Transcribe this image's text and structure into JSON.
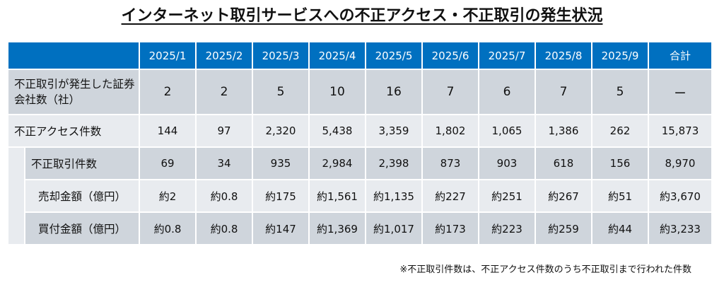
{
  "title": "インターネット取引サービスへの不正アクセス・不正取引の発生状況",
  "table": {
    "headers": [
      "2025/1",
      "2025/2",
      "2025/3",
      "2025/4",
      "2025/5",
      "2025/6",
      "2025/7",
      "2025/8",
      "2025/9",
      "合計"
    ],
    "rows": [
      {
        "label": "不正取引が発生した証券会社数（社）",
        "values": [
          "2",
          "2",
          "5",
          "10",
          "16",
          "7",
          "6",
          "7",
          "5",
          "ー"
        ]
      },
      {
        "label": "不正アクセス件数",
        "values": [
          "144",
          "97",
          "2,320",
          "5,438",
          "3,359",
          "1,802",
          "1,065",
          "1,386",
          "262",
          "15,873"
        ]
      },
      {
        "label": "不正取引件数",
        "values": [
          "69",
          "34",
          "935",
          "2,984",
          "2,398",
          "873",
          "903",
          "618",
          "156",
          "8,970"
        ]
      },
      {
        "label": "売却金額（億円）",
        "values": [
          "約2",
          "約0.8",
          "約175",
          "約1,561",
          "約1,135",
          "約227",
          "約251",
          "約267",
          "約51",
          "約3,670"
        ]
      },
      {
        "label": "買付金額（億円）",
        "values": [
          "約0.8",
          "約0.8",
          "約147",
          "約1,369",
          "約1,017",
          "約173",
          "約223",
          "約259",
          "約44",
          "約3,233"
        ]
      }
    ]
  },
  "footnote": "※不正取引件数は、不正アクセス件数のうち不正取引まで行われた件数"
}
